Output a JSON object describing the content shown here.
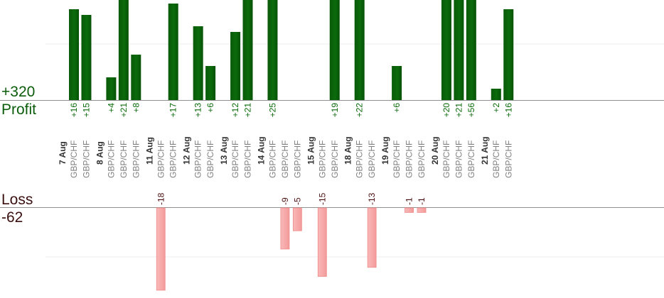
{
  "labels": {
    "total_profit": "+320",
    "profit": "Profit",
    "loss": "Loss",
    "total_loss": "-62"
  },
  "colors": {
    "profit_bar": "#0b6b0b",
    "loss_bar": "#f7aaaa",
    "profit_text": "#0a6a0a",
    "loss_text": "#4a1010",
    "pair_text": "#808080",
    "date_text": "#333333",
    "axis": "#909090",
    "grid": "#ececec"
  },
  "chart_data": {
    "type": "bar",
    "ylim_profit": [
      0,
      30
    ],
    "ylim_loss": [
      -18,
      0
    ],
    "days": [
      {
        "date": "7 Aug",
        "trades": [
          {
            "pair": "GBP/CHF",
            "label": "+16",
            "value": 16
          },
          {
            "pair": "GBP/CHF",
            "label": "+15",
            "value": 15
          }
        ]
      },
      {
        "date": "8 Aug",
        "trades": [
          {
            "pair": "GBP/CHF",
            "label": "+4",
            "value": 4
          },
          {
            "pair": "GBP/CHF",
            "label": "+21",
            "value": 21
          },
          {
            "pair": "GBP/CHF",
            "label": "+8",
            "value": 8
          }
        ]
      },
      {
        "date": "11 Aug",
        "trades": [
          {
            "pair": "GBP/CHF",
            "label": "-18",
            "value": -18
          },
          {
            "pair": "GBP/CHF",
            "label": "+17",
            "value": 17
          }
        ]
      },
      {
        "date": "12 Aug",
        "trades": [
          {
            "pair": "GBP/CHF",
            "label": "+13",
            "value": 13
          },
          {
            "pair": "GBP/CHF",
            "label": "+6",
            "value": 6
          }
        ]
      },
      {
        "date": "13 Aug",
        "trades": [
          {
            "pair": "GBP/CHF",
            "label": "+12",
            "value": 12
          },
          {
            "pair": "GBP/CHF",
            "label": "+21",
            "value": 21
          }
        ]
      },
      {
        "date": "14 Aug",
        "trades": [
          {
            "pair": "GBP/CHF",
            "label": "+25",
            "value": 25
          },
          {
            "pair": "GBP/CHF",
            "label": "-9",
            "value": -9
          },
          {
            "pair": "GBP/CHF",
            "label": "-5",
            "value": -5
          }
        ]
      },
      {
        "date": "15 Aug",
        "trades": [
          {
            "pair": "GBP/CHF",
            "label": "-15",
            "value": -15
          },
          {
            "pair": "GBP/CHF",
            "label": "+19",
            "value": 19
          }
        ]
      },
      {
        "date": "18 Aug",
        "trades": [
          {
            "pair": "GBP/CHF",
            "label": "+22",
            "value": 22
          },
          {
            "pair": "GBP/CHF",
            "label": "-13",
            "value": -13
          }
        ]
      },
      {
        "date": "19 Aug",
        "trades": [
          {
            "pair": "GBP/CHF",
            "label": "+6",
            "value": 6
          },
          {
            "pair": "GBP/CHF",
            "label": "-1",
            "value": -1
          },
          {
            "pair": "GBP/CHF",
            "label": "-1",
            "value": -1
          }
        ]
      },
      {
        "date": "20 Aug",
        "trades": [
          {
            "pair": "GBP/CHF",
            "label": "+20",
            "value": 20
          },
          {
            "pair": "GBP/CHF",
            "label": "+21",
            "value": 21
          },
          {
            "pair": "GBP/CHF",
            "label": "+56",
            "value": 56
          }
        ]
      },
      {
        "date": "21 Aug",
        "trades": [
          {
            "pair": "GBP/CHF",
            "label": "+2",
            "value": 2
          },
          {
            "pair": "GBP/CHF",
            "label": "+16",
            "value": 16
          }
        ]
      }
    ]
  }
}
